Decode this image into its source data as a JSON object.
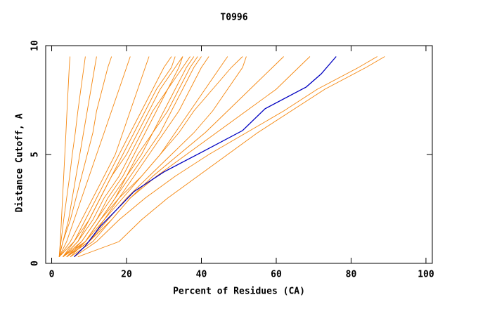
{
  "chart_data": {
    "type": "line",
    "title": "T0996",
    "x_label": "Percent of Residues (CA)",
    "y_label": "Distance Cutoff, A",
    "xlim": [
      -1.6,
      101.7
    ],
    "ylim": [
      0,
      10
    ],
    "xticks": [
      0,
      20,
      40,
      60,
      80,
      100
    ],
    "yticks": [
      0,
      5,
      10
    ],
    "series": [
      {
        "color": "#f5870f",
        "x": [
          2,
          2.3,
          2.6,
          2.9,
          3.2,
          3.5,
          3.8,
          4.1,
          4.4,
          4.7,
          4.9
        ],
        "values": [
          0.3,
          1,
          2,
          3,
          4,
          5,
          6,
          7,
          8,
          9,
          9.5
        ]
      },
      {
        "color": "#f5870f",
        "x": [
          2,
          2.5,
          3.2,
          4,
          4.8,
          5.5,
          6.3,
          7,
          7.8,
          8.6,
          9
        ],
        "values": [
          0.3,
          1,
          2,
          3,
          4,
          5,
          6,
          7,
          8,
          9,
          9.5
        ]
      },
      {
        "color": "#f5870f",
        "x": [
          2,
          3,
          4.5,
          5.5,
          6.5,
          7.5,
          8.5,
          9.5,
          10.5,
          11.5,
          12
        ],
        "values": [
          0.3,
          1,
          2,
          3,
          4,
          5,
          6,
          7,
          8,
          9,
          9.5
        ]
      },
      {
        "color": "#f5870f",
        "x": [
          2,
          3,
          5,
          6.5,
          8,
          9.5,
          11,
          12,
          13.5,
          15,
          16
        ],
        "values": [
          0.3,
          1,
          2,
          3,
          4,
          5,
          6,
          7,
          8,
          9,
          9.5
        ]
      },
      {
        "color": "#f5870f",
        "x": [
          2,
          4,
          6,
          8,
          10,
          12,
          14,
          16,
          18,
          20,
          21
        ],
        "values": [
          0.3,
          1,
          2,
          3,
          4,
          5,
          6,
          7,
          8,
          9,
          9.5
        ]
      },
      {
        "color": "#f5870f",
        "x": [
          3,
          7,
          11,
          14,
          18,
          21,
          24,
          27,
          31,
          35,
          37
        ],
        "values": [
          0.3,
          1,
          2,
          3,
          4,
          5,
          6,
          7,
          8,
          9,
          9.5
        ]
      },
      {
        "color": "#f5870f",
        "x": [
          3,
          8,
          12,
          16,
          20,
          23,
          27,
          30,
          33,
          36,
          38
        ],
        "values": [
          0.3,
          1,
          2,
          3,
          4,
          5,
          6,
          7,
          8,
          9,
          9.5
        ]
      },
      {
        "color": "#f5870f",
        "x": [
          4,
          9,
          13,
          17,
          20,
          24,
          27,
          31,
          34,
          37,
          39
        ],
        "values": [
          0.3,
          1,
          2,
          3,
          4,
          5,
          6,
          7,
          8,
          9,
          9.5
        ]
      },
      {
        "color": "#f5870f",
        "x": [
          4,
          8,
          12,
          15,
          19,
          22,
          25,
          28,
          31,
          34,
          35
        ],
        "values": [
          0.3,
          1,
          2,
          3,
          4,
          5,
          6,
          7,
          8,
          9,
          9.5
        ]
      },
      {
        "color": "#f5870f",
        "x": [
          3,
          7,
          10,
          13,
          16,
          19,
          22,
          25,
          28,
          32,
          33
        ],
        "values": [
          0.3,
          1,
          2,
          3,
          4,
          5,
          6,
          7,
          8,
          9,
          9.5
        ]
      },
      {
        "color": "#f5870f",
        "x": [
          5,
          9,
          13,
          17,
          21,
          25,
          29,
          32,
          35,
          38,
          40
        ],
        "values": [
          0.3,
          1,
          2,
          3,
          4,
          5,
          6,
          7,
          8,
          9,
          9.5
        ]
      },
      {
        "color": "#f5870f",
        "x": [
          4,
          10,
          14,
          18,
          22,
          26,
          30,
          34,
          37,
          40,
          42
        ],
        "values": [
          0.3,
          1,
          2,
          3,
          4,
          5,
          6,
          7,
          8,
          9,
          9.5
        ]
      },
      {
        "color": "#f5870f",
        "x": [
          3,
          6,
          9,
          12,
          15,
          18,
          21,
          24,
          27,
          30,
          32
        ],
        "values": [
          0.3,
          1,
          2,
          3,
          4,
          5,
          6,
          7,
          8,
          9,
          9.5
        ]
      },
      {
        "color": "#f5870f",
        "x": [
          2,
          5,
          8,
          11,
          14,
          17,
          19,
          21,
          23,
          25,
          26
        ],
        "values": [
          0.3,
          1,
          2,
          3,
          4,
          5,
          6,
          7,
          8,
          9,
          9.5
        ]
      },
      {
        "color": "#f5870f",
        "x": [
          3,
          9,
          14,
          19,
          24,
          29,
          33,
          37,
          41,
          45,
          47
        ],
        "values": [
          0.3,
          1,
          2,
          3,
          4,
          5,
          6,
          7,
          8,
          9,
          9.5
        ]
      },
      {
        "color": "#f5870f",
        "x": [
          4,
          10,
          15,
          20,
          26,
          32,
          38,
          43,
          47,
          51,
          52
        ],
        "values": [
          0.3,
          1,
          2,
          3,
          4,
          5,
          6,
          7,
          8,
          9,
          9.5
        ]
      },
      {
        "color": "#f5870f",
        "x": [
          5,
          11,
          16,
          21,
          27,
          34,
          41,
          47,
          53,
          59,
          62
        ],
        "values": [
          0.3,
          1,
          2,
          3,
          4,
          5,
          6,
          7,
          8,
          9,
          9.5
        ]
      },
      {
        "color": "#f5870f",
        "x": [
          4,
          10,
          16,
          21,
          28,
          36,
          44,
          52,
          60,
          66,
          69
        ],
        "values": [
          0.3,
          1,
          2,
          3,
          4,
          5,
          6,
          7,
          8,
          9,
          9.5
        ]
      },
      {
        "color": "#f5870f",
        "x": [
          4,
          9,
          13,
          18,
          24,
          29,
          34,
          38,
          43,
          48,
          51
        ],
        "values": [
          0.3,
          1,
          2,
          3,
          4,
          5,
          6,
          7,
          8,
          9,
          9.5
        ]
      },
      {
        "color": "#f5870f",
        "x": [
          6,
          12,
          18,
          25,
          33,
          42,
          52,
          62,
          71,
          82,
          87
        ],
        "values": [
          0.3,
          1,
          2,
          3,
          4,
          5,
          6,
          7,
          8,
          9,
          9.5
        ]
      },
      {
        "color": "#f5870f",
        "x": [
          7,
          18,
          24,
          31,
          39,
          47,
          55,
          64,
          73,
          84,
          89
        ],
        "values": [
          0.3,
          1,
          2,
          3,
          4,
          5,
          6,
          7,
          8,
          9,
          9.5
        ]
      },
      {
        "color": "#f5870f",
        "x": [
          2,
          6,
          10,
          13,
          16,
          20,
          23,
          26,
          29,
          33,
          35
        ],
        "values": [
          0.3,
          1,
          2,
          3,
          4,
          5,
          6,
          7,
          8,
          9,
          9.5
        ]
      },
      {
        "color": "#0000c0",
        "x": [
          6,
          9,
          13,
          17,
          22,
          30,
          40,
          51,
          57,
          68,
          72,
          76
        ],
        "values": [
          0.3,
          0.8,
          1.7,
          2.4,
          3.3,
          4.2,
          5.1,
          6.1,
          7.1,
          8.1,
          8.7,
          9.5
        ]
      }
    ]
  }
}
